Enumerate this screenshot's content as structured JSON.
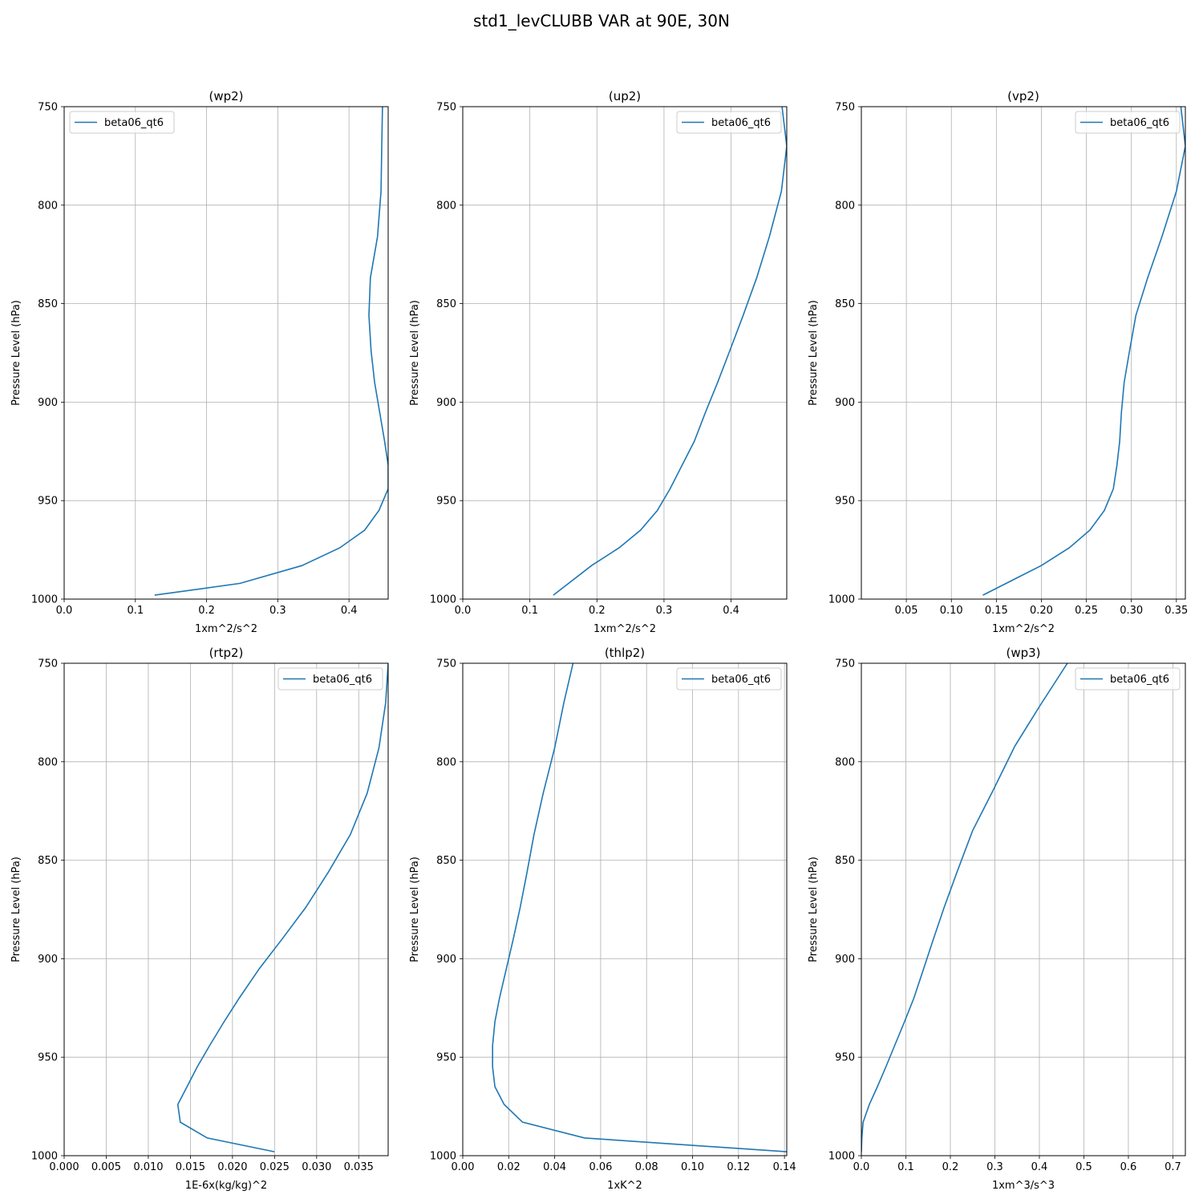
{
  "suptitle": "std1_levCLUBB VAR at 90E, 30N",
  "series_color": "#1f77b4",
  "chart_data": [
    {
      "type": "line",
      "title": "(wp2)",
      "xlabel": "1xm^2/s^2",
      "ylabel": "Pressure Level (hPa)",
      "xlim": [
        0,
        0.455
      ],
      "ylim": [
        1000,
        750
      ],
      "xticks": [
        0.0,
        0.1,
        0.2,
        0.3,
        0.4
      ],
      "xtick_labels": [
        "0.0",
        "0.1",
        "0.2",
        "0.3",
        "0.4"
      ],
      "yticks": [
        750,
        800,
        850,
        900,
        950,
        1000
      ],
      "ytick_labels": [
        "750",
        "800",
        "850",
        "900",
        "950",
        "1000"
      ],
      "grid": true,
      "legend_loc": "upper-left",
      "series": [
        {
          "name": "beta06_qt6",
          "x": [
            0.447,
            0.446,
            0.445,
            0.44,
            0.43,
            0.428,
            0.431,
            0.436,
            0.45,
            0.455,
            0.455,
            0.442,
            0.422,
            0.387,
            0.334,
            0.247,
            0.127
          ],
          "y": [
            750,
            770,
            793,
            816,
            837,
            856,
            874,
            890,
            920,
            932,
            944,
            955,
            965,
            974,
            983,
            992,
            998
          ]
        }
      ]
    },
    {
      "type": "line",
      "title": "(up2)",
      "xlabel": "1xm^2/s^2",
      "ylabel": "Pressure Level (hPa)",
      "xlim": [
        0,
        0.483
      ],
      "ylim": [
        1000,
        750
      ],
      "xticks": [
        0.0,
        0.1,
        0.2,
        0.3,
        0.4
      ],
      "xtick_labels": [
        "0.0",
        "0.1",
        "0.2",
        "0.3",
        "0.4"
      ],
      "yticks": [
        750,
        800,
        850,
        900,
        950,
        1000
      ],
      "ytick_labels": [
        "750",
        "800",
        "850",
        "900",
        "950",
        "1000"
      ],
      "grid": true,
      "legend_loc": "upper-right",
      "series": [
        {
          "name": "beta06_qt6",
          "x": [
            0.476,
            0.483,
            0.475,
            0.457,
            0.438,
            0.418,
            0.398,
            0.38,
            0.362,
            0.345,
            0.327,
            0.309,
            0.29,
            0.265,
            0.233,
            0.192,
            0.135
          ],
          "y": [
            750,
            770,
            793,
            816,
            837,
            856,
            874,
            890,
            905,
            920,
            932,
            944,
            955,
            965,
            974,
            983,
            998
          ]
        }
      ]
    },
    {
      "type": "line",
      "title": "(vp2)",
      "xlabel": "1xm^2/s^2",
      "ylabel": "Pressure Level (hPa)",
      "xlim": [
        0.0,
        0.36
      ],
      "ylim": [
        1000,
        750
      ],
      "xticks": [
        0.05,
        0.1,
        0.15,
        0.2,
        0.25,
        0.3,
        0.35
      ],
      "xtick_labels": [
        "0.05",
        "0.10",
        "0.15",
        "0.20",
        "0.25",
        "0.30",
        "0.35"
      ],
      "yticks": [
        750,
        800,
        850,
        900,
        950,
        1000
      ],
      "ytick_labels": [
        "750",
        "800",
        "850",
        "900",
        "950",
        "1000"
      ],
      "grid": true,
      "legend_loc": "upper-right",
      "series": [
        {
          "name": "beta06_qt6",
          "x": [
            0.355,
            0.36,
            0.35,
            0.334,
            0.318,
            0.305,
            0.298,
            0.292,
            0.289,
            0.287,
            0.284,
            0.28,
            0.27,
            0.254,
            0.231,
            0.2,
            0.135
          ],
          "y": [
            750,
            770,
            793,
            816,
            837,
            856,
            874,
            890,
            905,
            920,
            932,
            944,
            955,
            965,
            974,
            983,
            998
          ]
        }
      ]
    },
    {
      "type": "line",
      "title": "(rtp2)",
      "xlabel": "1E-6x(kg/kg)^2",
      "ylabel": "Pressure Level (hPa)",
      "xlim": [
        0,
        0.0385
      ],
      "ylim": [
        1000,
        750
      ],
      "xticks": [
        0.0,
        0.005,
        0.01,
        0.015,
        0.02,
        0.025,
        0.03,
        0.035
      ],
      "xtick_labels": [
        "0.000",
        "0.005",
        "0.010",
        "0.015",
        "0.020",
        "0.025",
        "0.030",
        "0.035"
      ],
      "yticks": [
        750,
        800,
        850,
        900,
        950,
        1000
      ],
      "ytick_labels": [
        "750",
        "800",
        "850",
        "900",
        "950",
        "1000"
      ],
      "grid": true,
      "legend_loc": "upper-right",
      "series": [
        {
          "name": "beta06_qt6",
          "x": [
            0.0385,
            0.0382,
            0.0374,
            0.036,
            0.034,
            0.0314,
            0.0287,
            0.0259,
            0.0232,
            0.0208,
            0.019,
            0.0173,
            0.0158,
            0.0146,
            0.0135,
            0.0138,
            0.017,
            0.025
          ],
          "y": [
            750,
            770,
            793,
            816,
            837,
            856,
            874,
            890,
            905,
            920,
            932,
            944,
            955,
            965,
            974,
            983,
            991,
            998
          ]
        }
      ]
    },
    {
      "type": "line",
      "title": "(thlp2)",
      "xlabel": "1xK^2",
      "ylabel": "Pressure Level (hPa)",
      "xlim": [
        0,
        0.141
      ],
      "ylim": [
        1000,
        750
      ],
      "xticks": [
        0.0,
        0.02,
        0.04,
        0.06,
        0.08,
        0.1,
        0.12,
        0.14
      ],
      "xtick_labels": [
        "0.00",
        "0.02",
        "0.04",
        "0.06",
        "0.08",
        "0.10",
        "0.12",
        "0.14"
      ],
      "yticks": [
        750,
        800,
        850,
        900,
        950,
        1000
      ],
      "ytick_labels": [
        "750",
        "800",
        "850",
        "900",
        "950",
        "1000"
      ],
      "grid": true,
      "legend_loc": "upper-right",
      "series": [
        {
          "name": "beta06_qt6",
          "x": [
            0.048,
            0.044,
            0.04,
            0.035,
            0.031,
            0.028,
            0.025,
            0.022,
            0.019,
            0.016,
            0.014,
            0.013,
            0.013,
            0.014,
            0.018,
            0.026,
            0.053,
            0.141
          ],
          "y": [
            750,
            770,
            793,
            816,
            837,
            856,
            874,
            890,
            905,
            920,
            932,
            944,
            955,
            965,
            974,
            983,
            991,
            998
          ]
        }
      ]
    },
    {
      "type": "line",
      "title": "(wp3)",
      "xlabel": "1xm^3/s^3",
      "ylabel": "Pressure Level (hPa)",
      "xlim": [
        0,
        0.728
      ],
      "ylim": [
        1000,
        750
      ],
      "xticks": [
        0.0,
        0.1,
        0.2,
        0.3,
        0.4,
        0.5,
        0.6,
        0.7
      ],
      "xtick_labels": [
        "0.0",
        "0.1",
        "0.2",
        "0.3",
        "0.4",
        "0.5",
        "0.6",
        "0.7"
      ],
      "yticks": [
        750,
        800,
        850,
        900,
        950,
        1000
      ],
      "ytick_labels": [
        "750",
        "800",
        "850",
        "900",
        "950",
        "1000"
      ],
      "grid": true,
      "legend_loc": "upper-right",
      "series": [
        {
          "name": "beta06_qt6",
          "x": [
            0.463,
            0.4,
            0.345,
            0.295,
            0.25,
            0.215,
            0.186,
            0.162,
            0.14,
            0.118,
            0.097,
            0.075,
            0.055,
            0.036,
            0.018,
            0.004,
            0.001,
            0.0
          ],
          "y": [
            750,
            772,
            792,
            815,
            835,
            856,
            874,
            890,
            905,
            920,
            932,
            944,
            955,
            965,
            974,
            983,
            991,
            998
          ]
        }
      ]
    }
  ]
}
